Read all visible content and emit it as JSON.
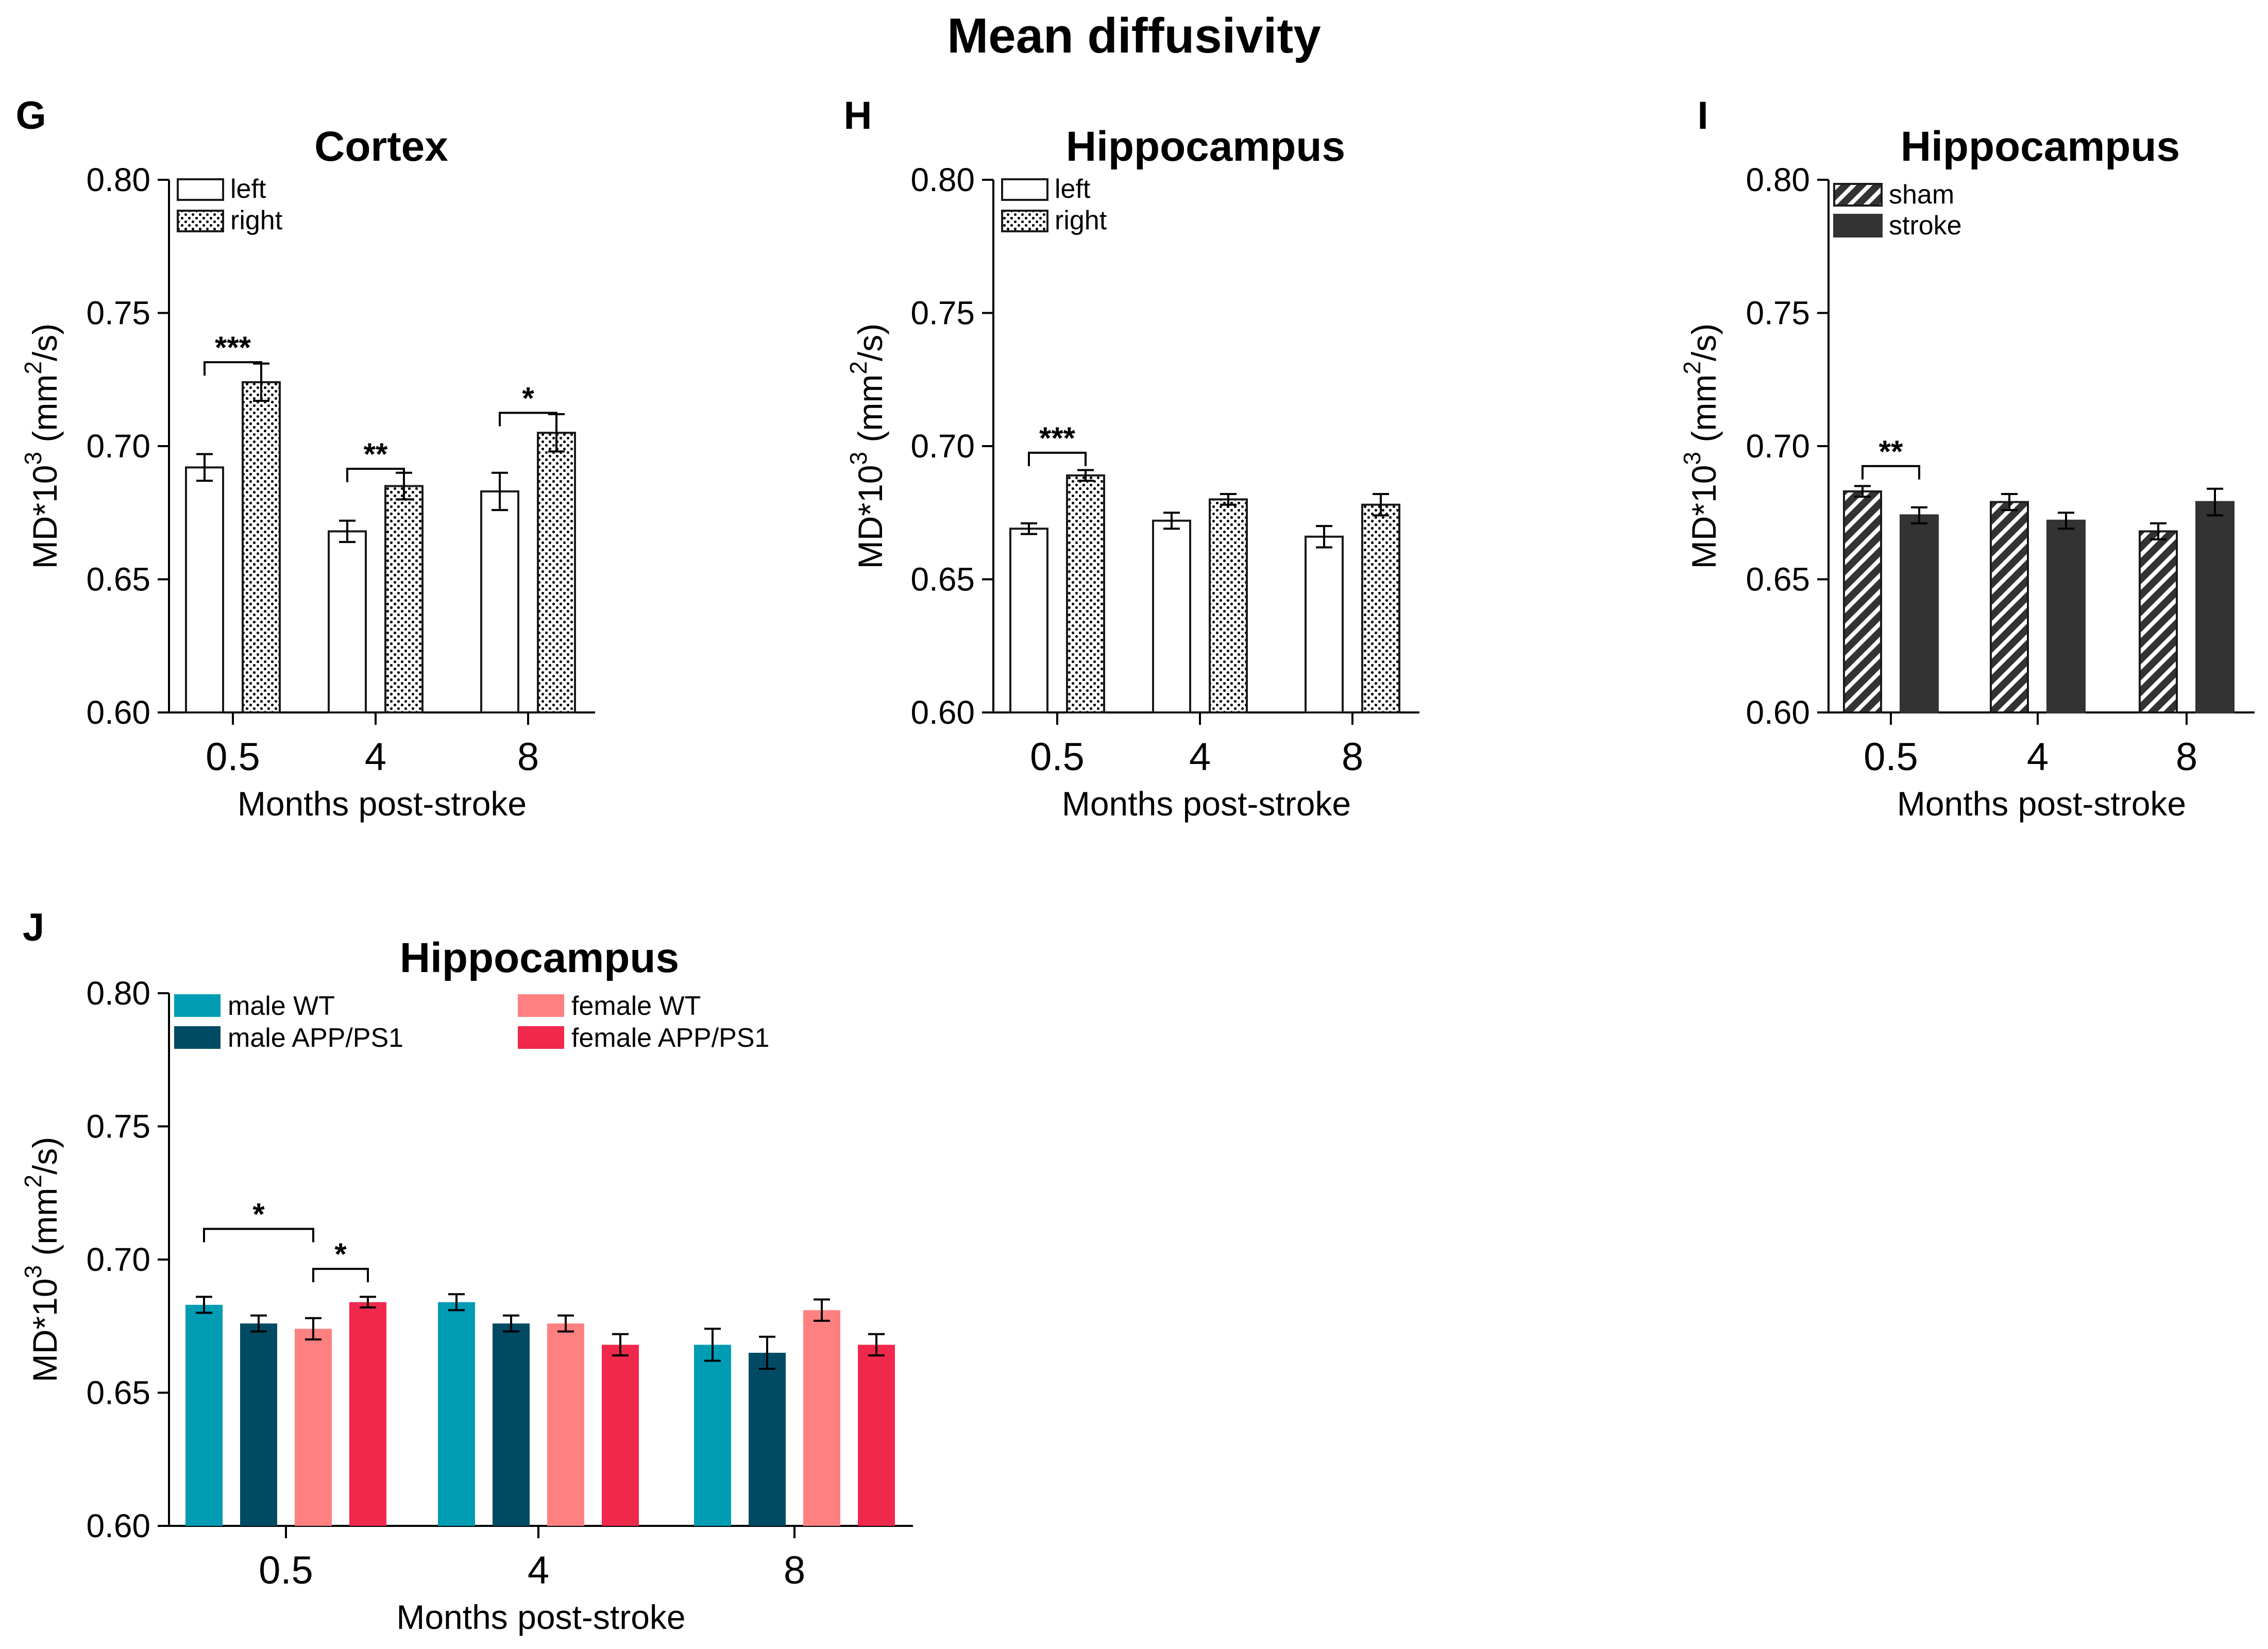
{
  "figure": {
    "title": "Mean diffusivity"
  },
  "chart_data": [
    {
      "id": "G",
      "panel_letter": "G",
      "type": "bar",
      "title": "Cortex",
      "xlabel": "Months post-stroke",
      "ylabel": "MD*10^3 (mm^2/s)",
      "ylim": [
        0.6,
        0.8
      ],
      "yticks": [
        "0.60",
        "0.65",
        "0.70",
        "0.75",
        "0.80"
      ],
      "categories": [
        "0.5",
        "4",
        "8"
      ],
      "series": [
        {
          "name": "left",
          "style": "white",
          "values": [
            0.692,
            0.668,
            0.683
          ],
          "errors": [
            0.005,
            0.004,
            0.007
          ]
        },
        {
          "name": "right",
          "style": "dots",
          "values": [
            0.724,
            0.685,
            0.705
          ],
          "errors": [
            0.007,
            0.005,
            0.007
          ]
        }
      ],
      "significance": [
        {
          "label": "***",
          "category": 0,
          "from_series": 0,
          "to_series": 1,
          "at": 0.7315
        },
        {
          "label": "**",
          "category": 1,
          "from_series": 0,
          "to_series": 1,
          "at": 0.6915
        },
        {
          "label": "*",
          "category": 2,
          "from_series": 0,
          "to_series": 1,
          "at": 0.7125
        }
      ]
    },
    {
      "id": "H",
      "panel_letter": "H",
      "type": "bar",
      "title": "Hippocampus",
      "xlabel": "Months post-stroke",
      "ylabel": "MD*10^3 (mm^2/s)",
      "ylim": [
        0.6,
        0.8
      ],
      "yticks": [
        "0.60",
        "0.65",
        "0.70",
        "0.75",
        "0.80"
      ],
      "categories": [
        "0.5",
        "4",
        "8"
      ],
      "series": [
        {
          "name": "left",
          "style": "white",
          "values": [
            0.669,
            0.672,
            0.666
          ],
          "errors": [
            0.002,
            0.003,
            0.004
          ]
        },
        {
          "name": "right",
          "style": "dots",
          "values": [
            0.689,
            0.68,
            0.678
          ],
          "errors": [
            0.002,
            0.002,
            0.004
          ]
        }
      ],
      "significance": [
        {
          "label": "***",
          "category": 0,
          "from_series": 0,
          "to_series": 1,
          "at": 0.6975
        }
      ]
    },
    {
      "id": "I",
      "panel_letter": "I",
      "type": "bar",
      "title": "Hippocampus",
      "xlabel": "Months post-stroke",
      "ylabel": "MD*10^3 (mm^2/s)",
      "ylim": [
        0.6,
        0.8
      ],
      "yticks": [
        "0.60",
        "0.65",
        "0.70",
        "0.75",
        "0.80"
      ],
      "categories": [
        "0.5",
        "4",
        "8"
      ],
      "series": [
        {
          "name": "sham",
          "style": "hatch",
          "values": [
            0.683,
            0.679,
            0.668
          ],
          "errors": [
            0.002,
            0.003,
            0.003
          ]
        },
        {
          "name": "stroke",
          "style": "dark",
          "values": [
            0.674,
            0.672,
            0.679
          ],
          "errors": [
            0.003,
            0.003,
            0.005
          ]
        }
      ],
      "significance": [
        {
          "label": "**",
          "category": 0,
          "from_series": 0,
          "to_series": 1,
          "at": 0.6925
        }
      ]
    },
    {
      "id": "J",
      "panel_letter": "J",
      "type": "bar",
      "title": "Hippocampus",
      "xlabel": "Months post-stroke",
      "ylabel": "MD*10^3 (mm^2/s)",
      "ylim": [
        0.6,
        0.8
      ],
      "yticks": [
        "0.60",
        "0.65",
        "0.70",
        "0.75",
        "0.80"
      ],
      "categories": [
        "0.5",
        "4",
        "8"
      ],
      "series": [
        {
          "name": "male WT",
          "color": "#009CB4",
          "values": [
            0.683,
            0.684,
            0.668
          ],
          "errors": [
            0.003,
            0.003,
            0.006
          ]
        },
        {
          "name": "male APP/PS1",
          "color": "#004B63",
          "values": [
            0.676,
            0.676,
            0.665
          ],
          "errors": [
            0.003,
            0.003,
            0.006
          ]
        },
        {
          "name": "female WT",
          "color": "#FF8080",
          "values": [
            0.674,
            0.676,
            0.681
          ],
          "errors": [
            0.004,
            0.003,
            0.004
          ]
        },
        {
          "name": "female APP/PS1",
          "color": "#F0284B",
          "values": [
            0.684,
            0.668,
            0.668
          ],
          "errors": [
            0.002,
            0.004,
            0.004
          ]
        }
      ],
      "significance": [
        {
          "label": "*",
          "category": 0,
          "from_series": 0,
          "to_series": 2,
          "at": 0.7115
        },
        {
          "label": "*",
          "category": 0,
          "from_series": 2,
          "to_series": 3,
          "at": 0.6965
        }
      ]
    }
  ]
}
